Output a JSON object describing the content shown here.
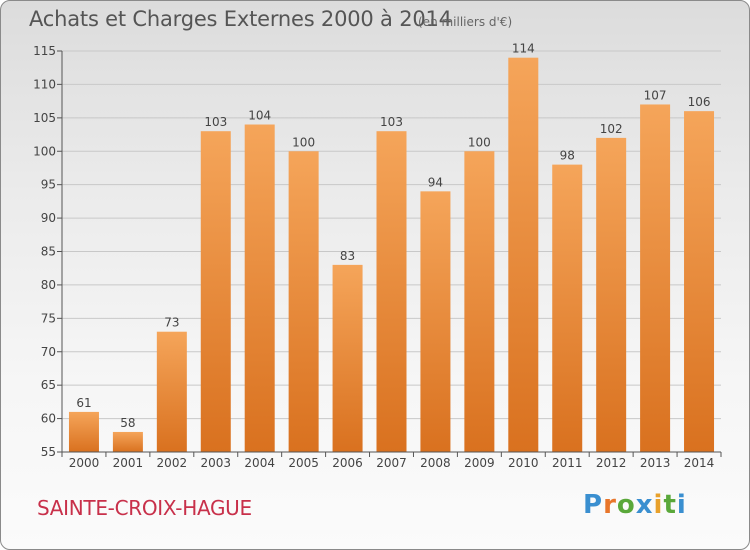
{
  "header": {
    "title": "Achats et Charges Externes 2000 à 2014",
    "subtitle": "(en milliers d'€)"
  },
  "footer": {
    "commune": "SAINTE-CROIX-HAGUE",
    "logo_text": "Proxiti",
    "logo_colors": [
      "#3a8fd0",
      "#e8762b",
      "#5aa83a",
      "#3a8fd0",
      "#e8a12b",
      "#5aa83a",
      "#3a8fd0"
    ]
  },
  "colors": {
    "bar_top": "#f5a55a",
    "bar_bottom": "#d9711f",
    "grid": "#c8c8c8",
    "title": "#555555",
    "commune": "#c8304a"
  },
  "chart_data": {
    "type": "bar",
    "title": "Achats et Charges Externes 2000 à 2014",
    "subtitle": "(en milliers d'€)",
    "categories": [
      "2000",
      "2001",
      "2002",
      "2003",
      "2004",
      "2005",
      "2006",
      "2007",
      "2008",
      "2009",
      "2010",
      "2011",
      "2012",
      "2013",
      "2014"
    ],
    "values": [
      61,
      58,
      73,
      103,
      104,
      100,
      83,
      103,
      94,
      100,
      114,
      98,
      102,
      107,
      106
    ],
    "ylim": [
      55,
      115
    ],
    "yticks": [
      55,
      60,
      65,
      70,
      75,
      80,
      85,
      90,
      95,
      100,
      105,
      110,
      115
    ],
    "grid": true,
    "xlabel": "",
    "ylabel": ""
  }
}
